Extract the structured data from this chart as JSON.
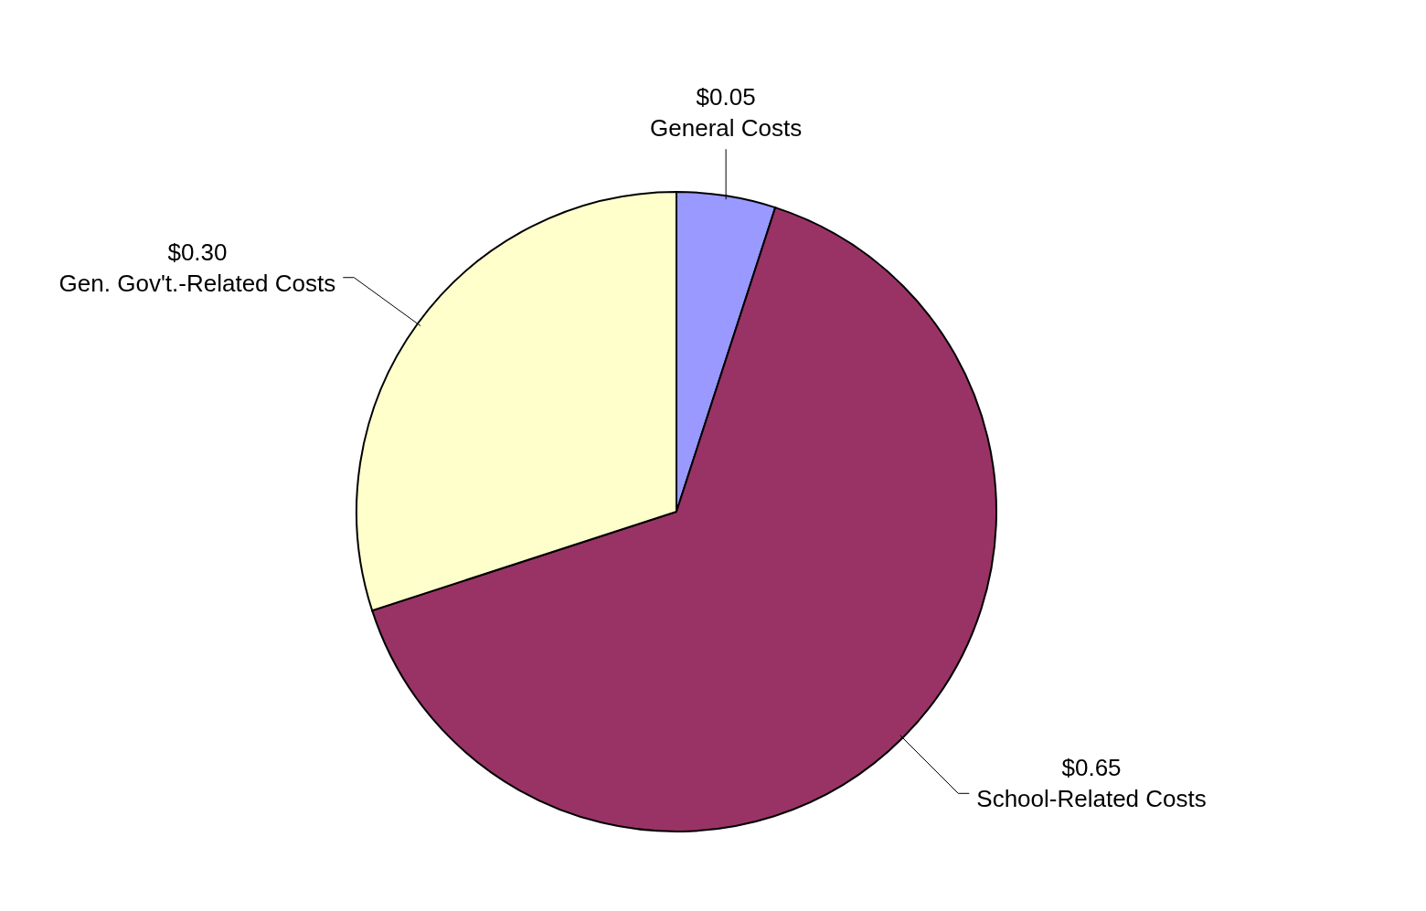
{
  "chart_data": {
    "type": "pie",
    "categories": [
      "General Costs",
      "School-Related Costs",
      "Gen. Gov't.-Related Costs"
    ],
    "values": [
      0.05,
      0.65,
      0.3
    ],
    "value_labels": [
      "$0.05",
      "$0.65",
      "$0.30"
    ],
    "colors": [
      "#9999ff",
      "#993366",
      "#ffffcc"
    ],
    "legend": false
  }
}
